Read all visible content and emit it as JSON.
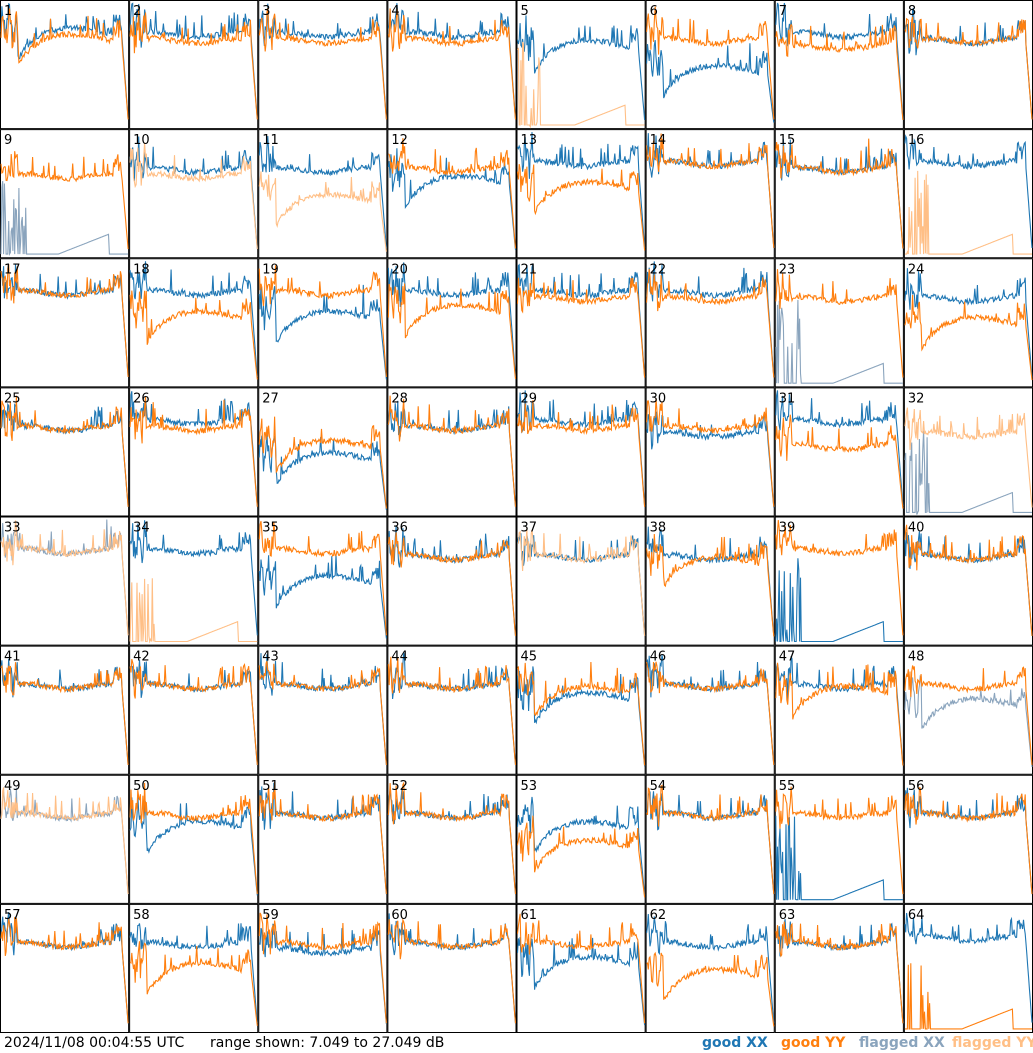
{
  "footer": {
    "timestamp": "2024/11/08 00:04:55 UTC",
    "range_text": "range shown: 7.049 to 27.049 dB"
  },
  "legend": [
    {
      "label": "good XX",
      "color": "#1f77b4"
    },
    {
      "label": "good YY",
      "color": "#ff7f0e"
    },
    {
      "label": "flagged XX",
      "color": "#8aa4bd"
    },
    {
      "label": "flagged YY",
      "color": "#ffbf86"
    }
  ],
  "chart_data": {
    "type": "line",
    "title": "",
    "xlabel": "",
    "ylabel": "",
    "ylim": [
      7.049,
      27.049
    ],
    "rows": 8,
    "cols": 8,
    "panels": [
      {
        "id": "1",
        "xx": {
          "h": 22,
          "s": "drop",
          "f": false
        },
        "yy": {
          "h": 21,
          "s": "drop",
          "f": false
        }
      },
      {
        "id": "2",
        "xx": {
          "h": 22,
          "s": "flat",
          "f": false
        },
        "yy": {
          "h": 21,
          "s": "flat",
          "f": false
        }
      },
      {
        "id": "3",
        "xx": {
          "h": 22,
          "s": "flat",
          "f": false
        },
        "yy": {
          "h": 21,
          "s": "flat",
          "f": false
        }
      },
      {
        "id": "4",
        "xx": {
          "h": 22,
          "s": "flat",
          "f": false
        },
        "yy": {
          "h": 21,
          "s": "flat",
          "f": false
        }
      },
      {
        "id": "5",
        "xx": {
          "h": 20,
          "s": "drop",
          "f": false
        },
        "yy": {
          "h": 8,
          "s": "spike",
          "f": true
        }
      },
      {
        "id": "6",
        "xx": {
          "h": 16,
          "s": "drop",
          "f": false
        },
        "yy": {
          "h": 21,
          "s": "flat",
          "f": false
        }
      },
      {
        "id": "7",
        "xx": {
          "h": 22,
          "s": "flat",
          "f": false
        },
        "yy": {
          "h": 20,
          "s": "flat",
          "f": false
        }
      },
      {
        "id": "8",
        "xx": {
          "h": 21,
          "s": "flat",
          "f": false
        },
        "yy": {
          "h": 21,
          "s": "flat",
          "f": false
        }
      },
      {
        "id": "9",
        "xx": {
          "h": 11,
          "s": "spike",
          "f": true
        },
        "yy": {
          "h": 20,
          "s": "flat",
          "f": false
        }
      },
      {
        "id": "10",
        "xx": {
          "h": 21,
          "s": "flat",
          "f": false
        },
        "yy": {
          "h": 20,
          "s": "flat",
          "f": true
        }
      },
      {
        "id": "11",
        "xx": {
          "h": 21,
          "s": "flat",
          "f": false
        },
        "yy": {
          "h": 16,
          "s": "drop",
          "f": true
        }
      },
      {
        "id": "12",
        "xx": {
          "h": 19,
          "s": "drop",
          "f": false
        },
        "yy": {
          "h": 21,
          "s": "flat",
          "f": false
        }
      },
      {
        "id": "13",
        "xx": {
          "h": 22,
          "s": "flat",
          "f": false
        },
        "yy": {
          "h": 18,
          "s": "drop",
          "f": false
        }
      },
      {
        "id": "14",
        "xx": {
          "h": 22,
          "s": "flat",
          "f": false
        },
        "yy": {
          "h": 22,
          "s": "flat",
          "f": false
        }
      },
      {
        "id": "15",
        "xx": {
          "h": 21,
          "s": "flat",
          "f": false
        },
        "yy": {
          "h": 21,
          "s": "flat",
          "f": false
        }
      },
      {
        "id": "16",
        "xx": {
          "h": 22,
          "s": "flat",
          "f": false
        },
        "yy": {
          "h": 8,
          "s": "spike",
          "f": true
        }
      },
      {
        "id": "17",
        "xx": {
          "h": 22,
          "s": "flat",
          "f": false
        },
        "yy": {
          "h": 22,
          "s": "flat",
          "f": false
        }
      },
      {
        "id": "18",
        "xx": {
          "h": 22,
          "s": "flat",
          "f": false
        },
        "yy": {
          "h": 18,
          "s": "drop",
          "f": false
        }
      },
      {
        "id": "19",
        "xx": {
          "h": 18,
          "s": "drop",
          "f": false
        },
        "yy": {
          "h": 22,
          "s": "flat",
          "f": false
        }
      },
      {
        "id": "20",
        "xx": {
          "h": 22,
          "s": "flat",
          "f": false
        },
        "yy": {
          "h": 19,
          "s": "drop",
          "f": false
        }
      },
      {
        "id": "21",
        "xx": {
          "h": 22,
          "s": "flat",
          "f": false
        },
        "yy": {
          "h": 21,
          "s": "flat",
          "f": false
        }
      },
      {
        "id": "22",
        "xx": {
          "h": 22,
          "s": "flat",
          "f": false
        },
        "yy": {
          "h": 21,
          "s": "flat",
          "f": false
        }
      },
      {
        "id": "23",
        "xx": {
          "h": 10,
          "s": "spike",
          "f": true
        },
        "yy": {
          "h": 21,
          "s": "flat",
          "f": false
        }
      },
      {
        "id": "24",
        "xx": {
          "h": 21,
          "s": "flat",
          "f": false
        },
        "yy": {
          "h": 17,
          "s": "drop",
          "f": false
        }
      },
      {
        "id": "25",
        "xx": {
          "h": 21,
          "s": "flat",
          "f": false
        },
        "yy": {
          "h": 21,
          "s": "flat",
          "f": false
        }
      },
      {
        "id": "26",
        "xx": {
          "h": 22,
          "s": "flat",
          "f": false
        },
        "yy": {
          "h": 21,
          "s": "flat",
          "f": false
        }
      },
      {
        "id": "27",
        "xx": {
          "h": 16,
          "s": "drop",
          "f": false
        },
        "yy": {
          "h": 18,
          "s": "drop",
          "f": false
        }
      },
      {
        "id": "28",
        "xx": {
          "h": 21,
          "s": "flat",
          "f": false
        },
        "yy": {
          "h": 21,
          "s": "flat",
          "f": false
        }
      },
      {
        "id": "29",
        "xx": {
          "h": 22,
          "s": "flat",
          "f": false
        },
        "yy": {
          "h": 21,
          "s": "flat",
          "f": false
        }
      },
      {
        "id": "30",
        "xx": {
          "h": 20,
          "s": "flat",
          "f": false
        },
        "yy": {
          "h": 21,
          "s": "flat",
          "f": false
        }
      },
      {
        "id": "31",
        "xx": {
          "h": 22,
          "s": "flat",
          "f": false
        },
        "yy": {
          "h": 18,
          "s": "flat",
          "f": false
        }
      },
      {
        "id": "32",
        "xx": {
          "h": 8,
          "s": "spike",
          "f": true
        },
        "yy": {
          "h": 20,
          "s": "flat",
          "f": true
        }
      },
      {
        "id": "33",
        "xx": {
          "h": 22,
          "s": "flat",
          "f": true
        },
        "yy": {
          "h": 22,
          "s": "flat",
          "f": true
        }
      },
      {
        "id": "34",
        "xx": {
          "h": 22,
          "s": "flat",
          "f": false
        },
        "yy": {
          "h": 8,
          "s": "spike",
          "f": true
        }
      },
      {
        "id": "35",
        "xx": {
          "h": 17,
          "s": "drop",
          "f": false
        },
        "yy": {
          "h": 22,
          "s": "flat",
          "f": false
        }
      },
      {
        "id": "36",
        "xx": {
          "h": 21,
          "s": "flat",
          "f": false
        },
        "yy": {
          "h": 21,
          "s": "flat",
          "f": false
        }
      },
      {
        "id": "37",
        "xx": {
          "h": 21,
          "s": "flat",
          "f": false
        },
        "yy": {
          "h": 21,
          "s": "flat",
          "f": true
        }
      },
      {
        "id": "38",
        "xx": {
          "h": 21,
          "s": "flat",
          "f": false
        },
        "yy": {
          "h": 20,
          "s": "drop",
          "f": false
        }
      },
      {
        "id": "39",
        "xx": {
          "h": 8,
          "s": "spike",
          "f": false
        },
        "yy": {
          "h": 22,
          "s": "flat",
          "f": false
        }
      },
      {
        "id": "40",
        "xx": {
          "h": 21,
          "s": "flat",
          "f": false
        },
        "yy": {
          "h": 21,
          "s": "flat",
          "f": false
        }
      },
      {
        "id": "41",
        "xx": {
          "h": 21,
          "s": "flat",
          "f": false
        },
        "yy": {
          "h": 21,
          "s": "flat",
          "f": false
        }
      },
      {
        "id": "42",
        "xx": {
          "h": 21,
          "s": "flat",
          "f": false
        },
        "yy": {
          "h": 21,
          "s": "flat",
          "f": false
        }
      },
      {
        "id": "43",
        "xx": {
          "h": 21,
          "s": "flat",
          "f": false
        },
        "yy": {
          "h": 21,
          "s": "flat",
          "f": false
        }
      },
      {
        "id": "44",
        "xx": {
          "h": 21,
          "s": "flat",
          "f": false
        },
        "yy": {
          "h": 21,
          "s": "flat",
          "f": false
        }
      },
      {
        "id": "45",
        "xx": {
          "h": 19,
          "s": "drop",
          "f": false
        },
        "yy": {
          "h": 20,
          "s": "drop",
          "f": false
        }
      },
      {
        "id": "46",
        "xx": {
          "h": 21,
          "s": "flat",
          "f": false
        },
        "yy": {
          "h": 21,
          "s": "flat",
          "f": false
        }
      },
      {
        "id": "47",
        "xx": {
          "h": 21,
          "s": "flat",
          "f": false
        },
        "yy": {
          "h": 20,
          "s": "drop",
          "f": false
        }
      },
      {
        "id": "48",
        "xx": {
          "h": 18,
          "s": "drop",
          "f": true
        },
        "yy": {
          "h": 21,
          "s": "flat",
          "f": false
        }
      },
      {
        "id": "49",
        "xx": {
          "h": 21,
          "s": "flat",
          "f": true
        },
        "yy": {
          "h": 21,
          "s": "flat",
          "f": true
        }
      },
      {
        "id": "50",
        "xx": {
          "h": 19,
          "s": "drop",
          "f": false
        },
        "yy": {
          "h": 21,
          "s": "flat",
          "f": false
        }
      },
      {
        "id": "51",
        "xx": {
          "h": 21,
          "s": "flat",
          "f": false
        },
        "yy": {
          "h": 21,
          "s": "flat",
          "f": false
        }
      },
      {
        "id": "52",
        "xx": {
          "h": 21,
          "s": "flat",
          "f": false
        },
        "yy": {
          "h": 21,
          "s": "flat",
          "f": false
        }
      },
      {
        "id": "53",
        "xx": {
          "h": 19,
          "s": "drop",
          "f": false
        },
        "yy": {
          "h": 16,
          "s": "drop",
          "f": false
        }
      },
      {
        "id": "54",
        "xx": {
          "h": 21,
          "s": "flat",
          "f": false
        },
        "yy": {
          "h": 21,
          "s": "flat",
          "f": false
        }
      },
      {
        "id": "55",
        "xx": {
          "h": 10,
          "s": "spike",
          "f": false
        },
        "yy": {
          "h": 21,
          "s": "flat",
          "f": false
        }
      },
      {
        "id": "56",
        "xx": {
          "h": 21,
          "s": "flat",
          "f": false
        },
        "yy": {
          "h": 21,
          "s": "flat",
          "f": false
        }
      },
      {
        "id": "57",
        "xx": {
          "h": 21,
          "s": "flat",
          "f": false
        },
        "yy": {
          "h": 21,
          "s": "flat",
          "f": false
        }
      },
      {
        "id": "58",
        "xx": {
          "h": 21,
          "s": "flat",
          "f": false
        },
        "yy": {
          "h": 17,
          "s": "drop",
          "f": false
        }
      },
      {
        "id": "59",
        "xx": {
          "h": 20,
          "s": "flat",
          "f": false
        },
        "yy": {
          "h": 21,
          "s": "flat",
          "f": false
        }
      },
      {
        "id": "60",
        "xx": {
          "h": 21,
          "s": "flat",
          "f": false
        },
        "yy": {
          "h": 21,
          "s": "flat",
          "f": false
        }
      },
      {
        "id": "61",
        "xx": {
          "h": 18,
          "s": "drop",
          "f": false
        },
        "yy": {
          "h": 21,
          "s": "flat",
          "f": false
        }
      },
      {
        "id": "62",
        "xx": {
          "h": 21,
          "s": "flat",
          "f": false
        },
        "yy": {
          "h": 16,
          "s": "drop",
          "f": false
        }
      },
      {
        "id": "63",
        "xx": {
          "h": 21,
          "s": "flat",
          "f": false
        },
        "yy": {
          "h": 21,
          "s": "flat",
          "f": false
        }
      },
      {
        "id": "64",
        "xx": {
          "h": 22,
          "s": "flat",
          "f": false
        },
        "yy": {
          "h": 8,
          "s": "spike",
          "f": false
        }
      }
    ]
  }
}
